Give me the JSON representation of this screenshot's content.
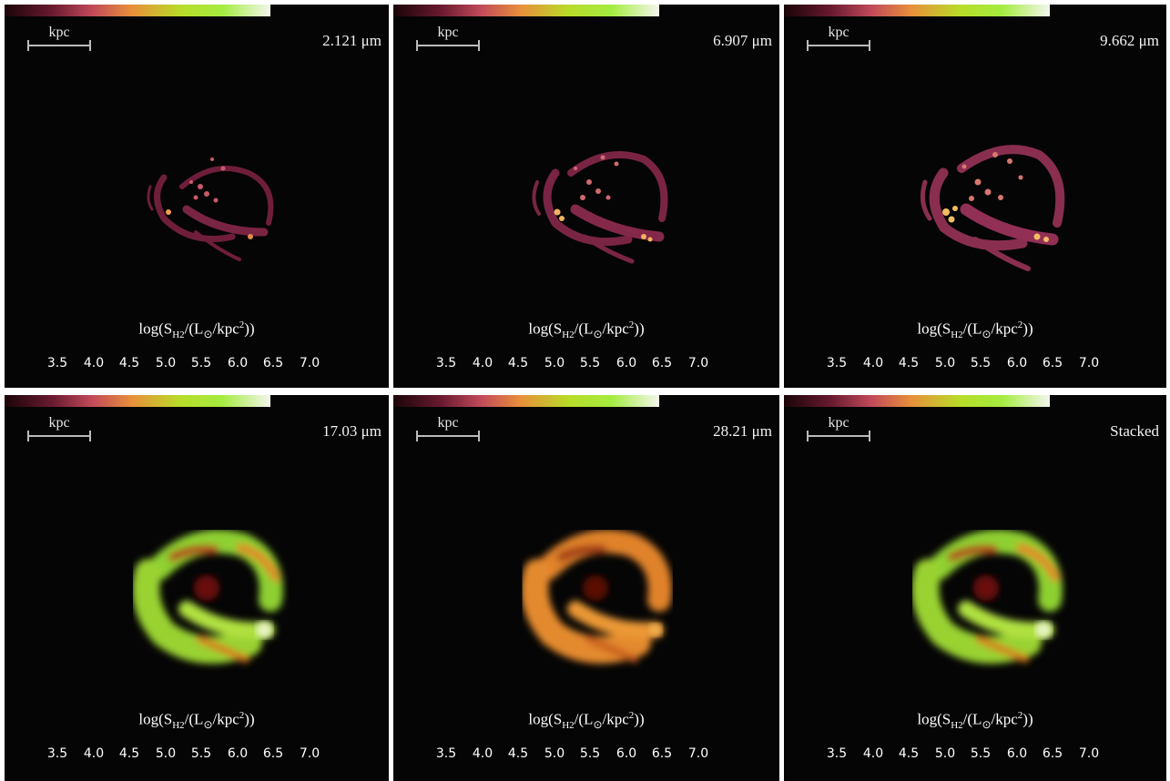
{
  "scale_label": "kpc",
  "colorbar": {
    "label_math": "log(S",
    "label_sub": "H2",
    "label_rest": "/(L",
    "label_sun": "⊙",
    "label_end": "/kpc",
    "label_sup": "2",
    "label_close": "))",
    "ticks": [
      "3.5",
      "4.0",
      "4.5",
      "5.0",
      "5.5",
      "6.0",
      "6.5",
      "7.0"
    ],
    "range": [
      3.5,
      7.3
    ]
  },
  "panels": [
    {
      "id": "p1",
      "wavelength": "2.121 μm",
      "style": "sparse"
    },
    {
      "id": "p2",
      "wavelength": "6.907 μm",
      "style": "sparse"
    },
    {
      "id": "p3",
      "wavelength": "9.662 μm",
      "style": "sparse"
    },
    {
      "id": "p4",
      "wavelength": "17.03 μm",
      "style": "bright-green"
    },
    {
      "id": "p5",
      "wavelength": "28.21 μm",
      "style": "orange"
    },
    {
      "id": "p6",
      "wavelength": "Stacked",
      "style": "bright-green"
    }
  ],
  "colors": {
    "background": "#050505",
    "frame": "#ffffff",
    "colormap_low": "#2a0612",
    "colormap_mid": "#e07a3a",
    "colormap_high_green": "#a8e61a",
    "colormap_top": "#f4f4ec"
  }
}
